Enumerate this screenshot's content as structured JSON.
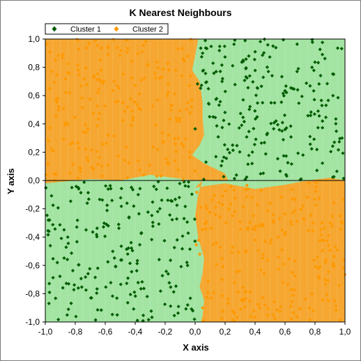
{
  "chart_data": {
    "type": "scatter",
    "title": "K Nearest Neighbours",
    "xlabel": "X axis",
    "ylabel": "Y axis",
    "xlim": [
      -1.0,
      1.0
    ],
    "ylim": [
      -1.0,
      1.0
    ],
    "xticks": [
      "-1,0",
      "-0,8",
      "-0,6",
      "-0,4",
      "-0,2",
      "0,0",
      "0,2",
      "0,4",
      "0,6",
      "0,8",
      "1,0"
    ],
    "yticks": [
      "1,0",
      "0,8",
      "0,6",
      "0,4",
      "0,2",
      "0,0",
      "-0,2",
      "-0,4",
      "-0,6",
      "-0,8",
      "-1,0"
    ],
    "legend": {
      "position": "top-left"
    },
    "background_regions": [
      {
        "class": "Cluster 1",
        "color": "#a3e4a3",
        "quadrants": [
          "x>0,y>0",
          "x<0,y<0"
        ]
      },
      {
        "class": "Cluster 2",
        "color": "#f5a731",
        "quadrants": [
          "x<0,y>0",
          "x>0,y<0"
        ]
      }
    ],
    "decision_boundary_vertical_y_pos": [
      [
        1.0,
        0.02
      ],
      [
        0.88,
        0.0
      ],
      [
        0.78,
        -0.02
      ],
      [
        0.7,
        0.03
      ],
      [
        0.55,
        0.05
      ],
      [
        0.45,
        0.05
      ],
      [
        0.32,
        0.06
      ],
      [
        0.25,
        0.03
      ],
      [
        0.18,
        -0.02
      ],
      [
        0.12,
        0.06
      ],
      [
        0.05,
        0.2
      ],
      [
        0.0,
        0.22
      ]
    ],
    "decision_boundary_vertical_y_neg": [
      [
        0.0,
        0.05
      ],
      [
        -0.1,
        0.02
      ],
      [
        -0.25,
        0.0
      ],
      [
        -0.4,
        0.02
      ],
      [
        -0.55,
        0.06
      ],
      [
        -0.65,
        0.05
      ],
      [
        -0.75,
        0.03
      ],
      [
        -0.85,
        0.06
      ],
      [
        -0.95,
        0.05
      ],
      [
        -1.0,
        0.04
      ]
    ],
    "decision_boundary_horizontal_x_neg": [
      [
        -1.0,
        -0.02
      ],
      [
        -0.7,
        0.01
      ],
      [
        -0.5,
        0.0
      ],
      [
        -0.3,
        0.04
      ],
      [
        -0.15,
        0.02
      ],
      [
        0.0,
        0.0
      ]
    ],
    "decision_boundary_horizontal_x_pos": [
      [
        0.0,
        -0.05
      ],
      [
        0.2,
        -0.02
      ],
      [
        0.4,
        -0.06
      ],
      [
        0.6,
        -0.03
      ],
      [
        0.75,
        0.0
      ],
      [
        0.9,
        0.02
      ],
      [
        1.0,
        0.0
      ]
    ],
    "series": [
      {
        "name": "Cluster 1",
        "color": "#005c00",
        "marker": "diamond",
        "count": 450,
        "distribution": "uniform in x>0,y>0 and x<0,y<0",
        "x": [
          0.05,
          0.12,
          0.18,
          0.25,
          0.32,
          0.38,
          0.45,
          0.52,
          0.58,
          0.65,
          0.72,
          0.78,
          0.85,
          0.92,
          0.98,
          -0.05,
          -0.12,
          -0.18,
          -0.25,
          -0.32,
          -0.38,
          -0.45,
          -0.52,
          -0.58,
          -0.65,
          -0.72,
          -0.78,
          -0.85,
          -0.92,
          -0.98
        ],
        "y": [
          0.9,
          0.45,
          0.7,
          0.25,
          0.85,
          0.12,
          0.55,
          0.95,
          0.35,
          0.65,
          0.18,
          0.8,
          0.42,
          0.6,
          0.3,
          -0.88,
          -0.42,
          -0.66,
          -0.22,
          -0.82,
          -0.1,
          -0.52,
          -0.95,
          -0.32,
          -0.62,
          -0.16,
          -0.76,
          -0.4,
          -0.58,
          -0.28
        ]
      },
      {
        "name": "Cluster 2",
        "color": "#ff9900",
        "marker": "diamond",
        "count": 450,
        "distribution": "uniform in x<0,y>0 and x>0,y<0",
        "x": [
          -0.05,
          -0.12,
          -0.18,
          -0.25,
          -0.32,
          -0.38,
          -0.45,
          -0.52,
          -0.58,
          -0.65,
          -0.72,
          -0.78,
          -0.85,
          -0.92,
          -0.98,
          0.05,
          0.12,
          0.18,
          0.25,
          0.32,
          0.38,
          0.45,
          0.52,
          0.58,
          0.65,
          0.72,
          0.78,
          0.85,
          0.92,
          0.98
        ],
        "y": [
          0.88,
          0.42,
          0.68,
          0.22,
          0.82,
          0.14,
          0.52,
          0.94,
          0.32,
          0.62,
          0.16,
          0.78,
          0.4,
          0.58,
          0.28,
          -0.9,
          -0.45,
          -0.7,
          -0.25,
          -0.85,
          -0.12,
          -0.55,
          -0.95,
          -0.35,
          -0.65,
          -0.18,
          -0.8,
          -0.42,
          -0.6,
          -0.3
        ]
      }
    ],
    "zero_line": {
      "axis": "y",
      "value": 0.0,
      "color": "#000000"
    }
  }
}
